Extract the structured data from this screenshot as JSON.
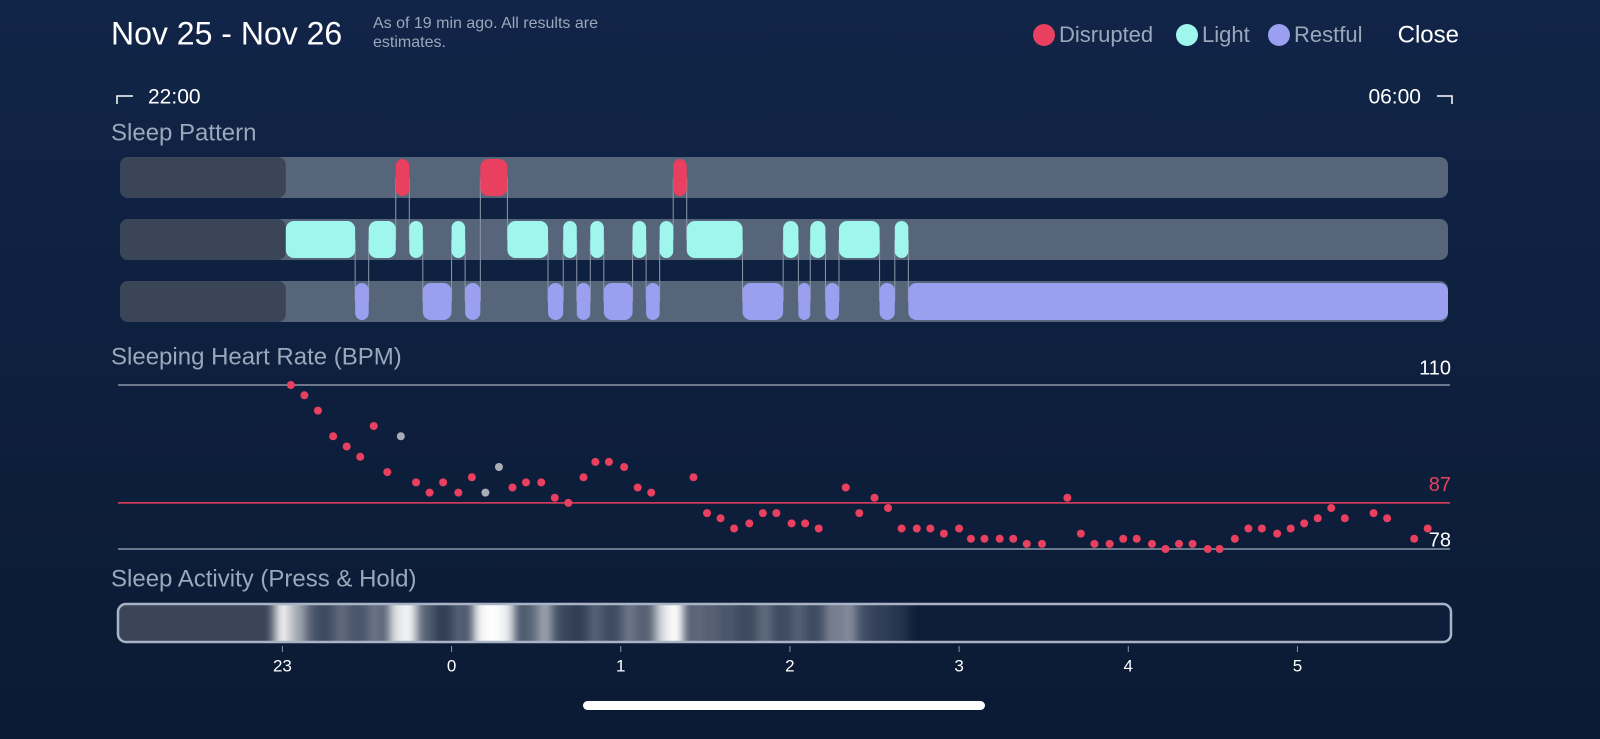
{
  "header": {
    "title": "Nov 25 - Nov 26",
    "note": "As of 19 min ago. All results are estimates.",
    "close": "Close",
    "legend": [
      {
        "label": "Disrupted",
        "color": "#e8405e"
      },
      {
        "label": "Light",
        "color": "#9ef6ec"
      },
      {
        "label": "Restful",
        "color": "#9a9ff0"
      }
    ]
  },
  "range": {
    "start": "22:00",
    "end": "06:00"
  },
  "sleep_pattern": {
    "title": "Sleep Pattern",
    "sleep_start": -0.98,
    "lanes": [
      {
        "segments": [
          [
            -0.33,
            -0.25
          ],
          [
            0.17,
            0.33
          ],
          [
            1.31,
            1.39
          ]
        ]
      },
      {
        "segments": [
          [
            -0.98,
            -0.57
          ],
          [
            -0.49,
            -0.33
          ],
          [
            -0.25,
            -0.17
          ],
          [
            0,
            0.08
          ],
          [
            0.33,
            0.57
          ],
          [
            0.66,
            0.74
          ],
          [
            0.82,
            0.9
          ],
          [
            1.07,
            1.15
          ],
          [
            1.23,
            1.31
          ],
          [
            1.39,
            1.72
          ],
          [
            1.96,
            2.05
          ],
          [
            2.12,
            2.21
          ],
          [
            2.29,
            2.53
          ],
          [
            2.62,
            2.7
          ]
        ]
      },
      {
        "segments": [
          [
            -0.57,
            -0.49
          ],
          [
            -0.17,
            0
          ],
          [
            0.08,
            0.17
          ],
          [
            0.57,
            0.66
          ],
          [
            0.74,
            0.82
          ],
          [
            0.9,
            1.07
          ],
          [
            1.15,
            1.23
          ],
          [
            1.72,
            1.96
          ],
          [
            2.05,
            2.12
          ],
          [
            2.21,
            2.29
          ],
          [
            2.53,
            2.62
          ],
          [
            2.7,
            5.89
          ]
        ]
      }
    ]
  },
  "chart_data": {
    "type": "scatter",
    "title": "Sleeping Heart Rate (BPM)",
    "xlim": [
      -1.96,
      5.89
    ],
    "xticks": [
      {
        "value": -1,
        "label": "23"
      },
      0,
      1,
      2,
      3,
      4,
      5
    ],
    "ylim": [
      78,
      110
    ],
    "yticks": [
      78,
      110
    ],
    "reference": {
      "value": 87,
      "color": "#e8405e"
    },
    "series": [
      {
        "color": "#e8405e",
        "x": [
          -0.95,
          -0.87,
          -0.79,
          -0.7,
          -0.62,
          -0.54,
          -0.46,
          -0.38,
          -0.21,
          -0.13,
          -0.05,
          0.04,
          0.12,
          0.36,
          0.44,
          0.53,
          0.61,
          0.69,
          0.78,
          0.85,
          0.93,
          1.02,
          1.1,
          1.18,
          1.43,
          1.51,
          1.59,
          1.67,
          1.76,
          1.84,
          1.92,
          2.01,
          2.09,
          2.17,
          2.33,
          2.41,
          2.5,
          2.58,
          2.66,
          2.75,
          2.83,
          2.91,
          3,
          3.07,
          3.15,
          3.24,
          3.32,
          3.4,
          3.49,
          3.64,
          3.72,
          3.8,
          3.89,
          3.97,
          4.05,
          4.14,
          4.22,
          4.3,
          4.38,
          4.47,
          4.54,
          4.63,
          4.71,
          4.79,
          4.88,
          4.96,
          5.04,
          5.12,
          5.2,
          5.28,
          5.45,
          5.53,
          5.69,
          5.77
        ],
        "values": [
          110,
          108,
          105,
          100,
          98,
          96,
          102,
          93,
          91,
          89,
          91,
          89,
          92,
          90,
          91,
          91,
          88,
          87,
          92,
          95,
          95,
          94,
          90,
          89,
          92,
          85,
          84,
          82,
          83,
          85,
          85,
          83,
          83,
          82,
          90,
          85,
          88,
          86,
          82,
          82,
          82,
          81,
          82,
          80,
          80,
          80,
          80,
          79,
          79,
          88,
          81,
          79,
          79,
          80,
          80,
          79,
          78,
          79,
          79,
          78,
          78,
          80,
          82,
          82,
          81,
          82,
          83,
          84,
          86,
          84,
          85,
          84,
          80,
          82
        ]
      },
      {
        "color": "#a9adb5",
        "x": [
          -0.3,
          0.2,
          0.28
        ],
        "values": [
          100,
          89,
          94
        ]
      }
    ]
  },
  "sleep_activity": {
    "title": "Sleep Activity (Press & Hold)",
    "x": [
      -1,
      -0.92,
      -0.85,
      -0.75,
      -0.65,
      -0.55,
      -0.45,
      -0.33,
      -0.25,
      -0.15,
      -0.05,
      0.05,
      0.17,
      0.25,
      0.33,
      0.45,
      0.55,
      0.65,
      0.75,
      0.85,
      0.95,
      1.05,
      1.15,
      1.25,
      1.33,
      1.45,
      1.55,
      1.65,
      1.75,
      1.85,
      1.95,
      2.05,
      2.15,
      2.25,
      2.35,
      2.45,
      2.55,
      2.65
    ],
    "values": [
      0.9,
      0.6,
      0.3,
      0.2,
      0.35,
      0.25,
      0.4,
      0.85,
      0.95,
      0.3,
      0.15,
      0.3,
      0.95,
      1,
      0.9,
      0.3,
      0.6,
      0.2,
      0.15,
      0.3,
      0.2,
      0.4,
      0.3,
      0.85,
      1,
      0.35,
      0.3,
      0.25,
      0.2,
      0.35,
      0.2,
      0.3,
      0.2,
      0.45,
      0.5,
      0.2,
      0.15,
      0.1
    ]
  }
}
